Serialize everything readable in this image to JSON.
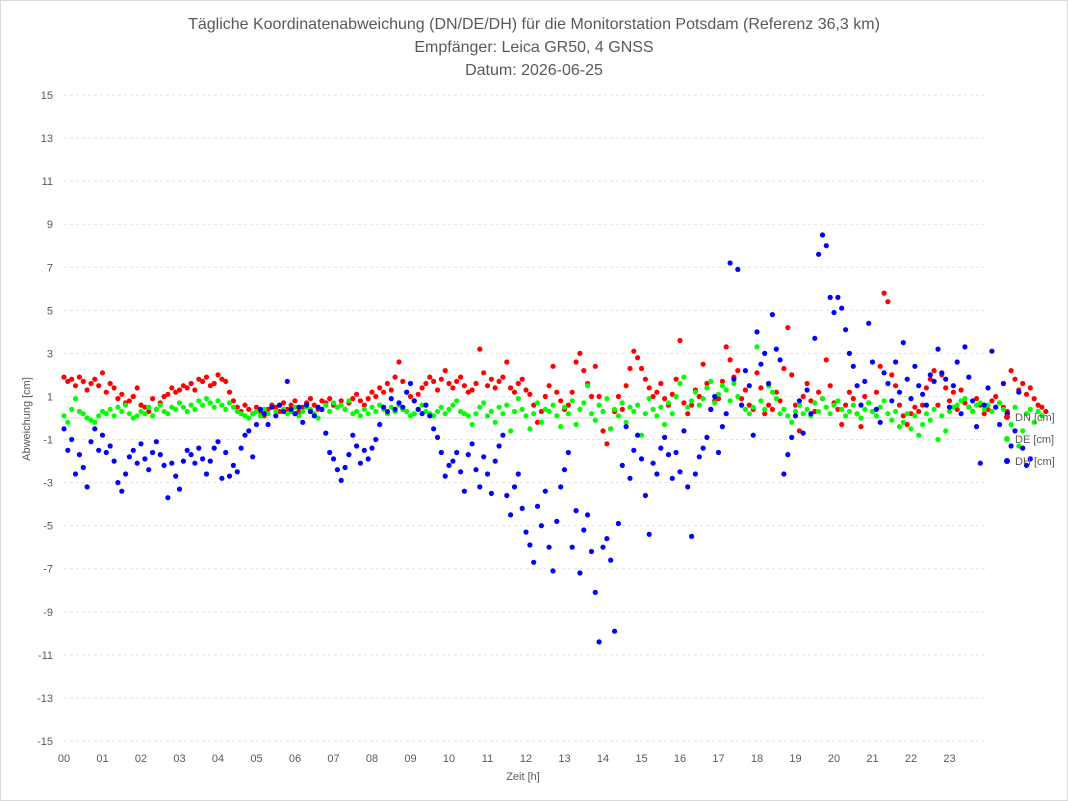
{
  "chart_data": {
    "type": "scatter",
    "title": [
      "Tägliche Koordinatenabweichung (DN/DE/DH) für die Monitorstation Potsdam (Referenz 36,3 km)",
      "Empfänger: Leica GR50, 4 GNSS",
      "Datum: 2026-06-25"
    ],
    "xlabel": "Zeit [h]",
    "ylabel": "Abweichung [cm]",
    "xlim": [
      0,
      23.8
    ],
    "ylim": [
      -15,
      15
    ],
    "x_ticks": [
      "00",
      "01",
      "02",
      "03",
      "04",
      "05",
      "06",
      "07",
      "08",
      "09",
      "10",
      "11",
      "12",
      "13",
      "14",
      "15",
      "16",
      "17",
      "18",
      "19",
      "20",
      "21",
      "22",
      "23"
    ],
    "y_ticks": [
      15,
      13,
      11,
      9,
      7,
      5,
      3,
      1,
      -1,
      -3,
      -5,
      -7,
      -9,
      -11,
      -13,
      -15
    ],
    "grid": "horizontal",
    "legend_position": "right",
    "sampling_step_h": 0.1,
    "series": [
      {
        "name": "DN [cm]",
        "color": "#ff0000",
        "values": [
          1.9,
          1.7,
          1.8,
          1.5,
          1.9,
          1.7,
          1.3,
          1.6,
          1.8,
          1.5,
          2.1,
          1.2,
          1.6,
          1.4,
          0.9,
          1.1,
          0.7,
          0.8,
          1.0,
          1.4,
          0.6,
          0.5,
          0.3,
          0.9,
          0.4,
          0.7,
          1.0,
          1.1,
          1.4,
          1.2,
          1.3,
          1.5,
          1.4,
          1.6,
          1.3,
          1.8,
          1.7,
          1.9,
          1.5,
          1.6,
          2.0,
          1.8,
          1.7,
          1.2,
          0.8,
          0.5,
          0.3,
          0.6,
          0.4,
          0.2,
          0.5,
          0.3,
          0.1,
          0.4,
          0.6,
          0.5,
          0.3,
          0.7,
          0.4,
          0.6,
          0.8,
          0.3,
          0.5,
          0.7,
          0.9,
          0.6,
          0.4,
          0.8,
          0.7,
          0.9,
          0.6,
          0.5,
          0.8,
          0.4,
          0.7,
          0.9,
          1.1,
          0.8,
          0.6,
          0.9,
          1.2,
          1.0,
          1.4,
          1.2,
          1.6,
          1.3,
          1.9,
          2.6,
          1.7,
          1.2,
          1.0,
          0.8,
          1.1,
          1.4,
          1.6,
          1.9,
          1.7,
          1.3,
          1.8,
          2.2,
          1.6,
          1.4,
          1.7,
          1.9,
          1.5,
          1.2,
          1.3,
          1.6,
          3.2,
          2.1,
          1.5,
          1.8,
          1.4,
          1.7,
          1.9,
          2.6,
          1.4,
          1.2,
          1.6,
          1.8,
          1.3,
          1.1,
          0.6,
          -0.2,
          0.3,
          1.0,
          1.5,
          2.4,
          1.2,
          0.8,
          0.4,
          0.6,
          1.2,
          2.6,
          3.0,
          2.2,
          1.6,
          1.0,
          2.4,
          1.0,
          -0.6,
          -1.2,
          -0.5,
          0.3,
          1.0,
          0.4,
          1.5,
          2.3,
          3.1,
          2.8,
          2.3,
          1.8,
          1.4,
          1.0,
          1.2,
          1.6,
          0.9,
          0.6,
          1.1,
          1.8,
          3.6,
          0.7,
          0.2,
          0.6,
          1.3,
          1.0,
          2.5,
          1.6,
          0.4,
          0.8,
          0.9,
          1.7,
          3.3,
          2.7,
          1.9,
          2.2,
          0.9,
          1.3,
          0.6,
          0.4,
          2.1,
          1.4,
          0.2,
          0.6,
          0.4,
          1.2,
          0.8,
          2.3,
          4.2,
          2.0,
          0.6,
          -0.6,
          1.0,
          1.6,
          0.8,
          0.3,
          1.2,
          0.9,
          2.7,
          1.5,
          0.7,
          0.4,
          -0.3,
          0.6,
          1.2,
          0.9,
          0.2,
          -0.4,
          1.0,
          0.7,
          0.3,
          1.2,
          2.4,
          5.8,
          5.4,
          2.0,
          1.5,
          0.6,
          0.1,
          -0.3,
          0.2,
          0.5,
          0.3,
          0.6,
          1.4,
          1.8,
          2.2,
          0.6,
          2.0,
          1.4,
          0.8,
          1.2,
          0.4,
          1.3,
          0.7,
          0.5,
          0.3,
          0.9,
          0.6,
          0.2,
          0.4,
          0.8,
          1.0,
          0.7,
          0.5,
          0.3,
          2.2,
          1.8,
          1.3,
          1.6,
          1.1,
          1.4,
          0.9,
          0.6,
          0.5,
          0.3
        ]
      },
      {
        "name": "DE [cm]",
        "color": "#00ff00",
        "values": [
          0.1,
          -0.2,
          0.4,
          0.9,
          0.3,
          0.2,
          0.0,
          -0.1,
          -0.2,
          0.1,
          0.3,
          0.2,
          0.4,
          0.1,
          0.5,
          0.3,
          0.6,
          0.2,
          0.0,
          0.1,
          0.3,
          0.2,
          0.5,
          0.1,
          0.4,
          0.6,
          0.3,
          0.2,
          0.5,
          0.4,
          0.7,
          0.5,
          0.3,
          0.6,
          0.4,
          0.8,
          0.6,
          0.9,
          0.7,
          0.5,
          0.8,
          0.6,
          0.4,
          0.7,
          0.5,
          0.3,
          0.2,
          0.1,
          0.0,
          0.2,
          0.3,
          0.1,
          0.4,
          0.2,
          0.5,
          0.3,
          0.6,
          0.4,
          0.2,
          0.3,
          0.5,
          0.1,
          0.3,
          0.5,
          0.4,
          0.2,
          0.0,
          0.4,
          0.6,
          0.3,
          0.7,
          0.5,
          0.6,
          0.4,
          0.8,
          0.2,
          0.3,
          0.1,
          0.4,
          0.2,
          0.5,
          0.3,
          0.6,
          0.4,
          0.2,
          0.5,
          0.3,
          0.6,
          0.4,
          0.3,
          0.1,
          0.2,
          0.4,
          0.6,
          0.3,
          0.2,
          0.1,
          0.3,
          0.5,
          0.2,
          0.4,
          0.6,
          0.8,
          0.3,
          0.2,
          0.1,
          -0.3,
          0.2,
          0.5,
          0.7,
          0.1,
          0.3,
          -0.2,
          0.5,
          0.2,
          0.6,
          -0.6,
          0.3,
          0.9,
          0.4,
          0.1,
          -0.5,
          0.2,
          0.7,
          -0.2,
          0.4,
          0.3,
          0.6,
          0.1,
          -0.4,
          0.5,
          0.2,
          0.8,
          -0.3,
          0.4,
          0.7,
          1.5,
          0.2,
          -0.1,
          0.6,
          0.3,
          0.9,
          -0.5,
          0.4,
          0.1,
          0.7,
          -0.2,
          0.5,
          0.3,
          0.6,
          -0.8,
          0.2,
          0.9,
          0.4,
          0.1,
          0.5,
          -0.3,
          0.7,
          0.2,
          1.0,
          1.6,
          1.9,
          0.5,
          0.8,
          1.2,
          0.6,
          0.9,
          1.4,
          1.7,
          0.7,
          1.1,
          1.5,
          1.3,
          0.8,
          1.6,
          1.0,
          0.6,
          0.4,
          0.2,
          0.5,
          3.3,
          0.8,
          0.4,
          1.5,
          1.2,
          0.9,
          0.2,
          0.4,
          0.1,
          -0.2,
          0.3,
          0.6,
          0.2,
          0.4,
          0.1,
          0.7,
          0.3,
          0.9,
          0.5,
          0.2,
          0.6,
          0.8,
          0.4,
          0.1,
          0.3,
          0.6,
          0.2,
          0.0,
          0.4,
          0.7,
          0.3,
          0.1,
          0.5,
          0.8,
          0.2,
          -0.1,
          0.3,
          -0.4,
          -0.2,
          0.2,
          -0.5,
          0.1,
          -0.8,
          -0.3,
          0.2,
          -0.1,
          0.4,
          -1.0,
          0.1,
          -0.6,
          0.3,
          0.5,
          0.6,
          0.8,
          0.9,
          0.5,
          0.3,
          0.6,
          0.7,
          0.4,
          0.6,
          0.3,
          0.5,
          0.7,
          0.4,
          0.2,
          -0.3,
          0.5,
          -1.3,
          -0.6,
          0.2,
          0.4,
          -0.2,
          0.3,
          0.1
        ]
      },
      {
        "name": "DH [cm]",
        "color": "#0000ff",
        "values": [
          -0.5,
          -1.5,
          -1.0,
          -2.6,
          -1.7,
          -2.3,
          -3.2,
          -1.1,
          -0.5,
          -1.5,
          -0.8,
          -1.6,
          -1.3,
          -2.0,
          -3.0,
          -3.4,
          -2.6,
          -1.8,
          -1.5,
          -2.1,
          -1.2,
          -1.9,
          -2.4,
          -1.6,
          -1.1,
          -1.7,
          -2.2,
          -3.7,
          -2.1,
          -2.7,
          -3.3,
          -2.0,
          -1.5,
          -1.7,
          -2.1,
          -1.4,
          -1.9,
          -2.6,
          -2.0,
          -1.4,
          -1.1,
          -2.8,
          -1.6,
          -2.7,
          -2.2,
          -2.5,
          -1.4,
          -0.8,
          -0.6,
          -1.8,
          -0.3,
          0.4,
          0.2,
          -0.3,
          0.5,
          0.1,
          0.6,
          0.3,
          1.7,
          0.4,
          0.2,
          0.5,
          -0.2,
          0.6,
          0.3,
          0.1,
          0.5,
          0.4,
          -0.7,
          -1.6,
          -1.9,
          -2.4,
          -2.9,
          -2.3,
          -1.7,
          -0.8,
          -1.3,
          -2.1,
          -1.5,
          -1.9,
          -1.4,
          -1.0,
          -0.3,
          0.5,
          0.3,
          0.9,
          0.4,
          0.7,
          0.5,
          1.2,
          1.6,
          0.8,
          0.4,
          0.2,
          0.6,
          0.1,
          -0.5,
          -0.9,
          -1.6,
          -2.7,
          -2.2,
          -2.0,
          -1.6,
          -2.5,
          -3.4,
          -1.7,
          -1.2,
          -2.4,
          -3.2,
          -1.8,
          -2.6,
          -3.5,
          -2.0,
          -1.3,
          -0.8,
          -3.6,
          -4.5,
          -3.2,
          -2.6,
          -4.2,
          -5.3,
          -5.9,
          -6.7,
          -4.1,
          -5.0,
          -3.4,
          -6.0,
          -7.1,
          -4.8,
          -3.2,
          -2.4,
          -1.6,
          -6.0,
          -4.3,
          -7.2,
          -5.2,
          -4.5,
          -6.2,
          -8.1,
          -10.4,
          -6.0,
          -5.6,
          -6.6,
          -9.9,
          -4.9,
          -2.2,
          -0.4,
          -2.8,
          -1.5,
          -0.8,
          -1.9,
          -3.6,
          -5.4,
          -2.1,
          -2.6,
          -1.4,
          -0.9,
          -1.7,
          -2.8,
          -1.6,
          -2.5,
          -0.6,
          -3.2,
          -5.5,
          -2.6,
          -1.8,
          -1.4,
          -0.9,
          0.4,
          1.0,
          -1.6,
          -0.4,
          0.2,
          7.2,
          1.8,
          6.9,
          0.6,
          2.2,
          1.5,
          -0.8,
          4.0,
          2.5,
          3.0,
          1.6,
          4.8,
          3.2,
          2.7,
          -2.6,
          -1.7,
          -0.9,
          0.1,
          0.8,
          -0.7,
          1.3,
          0.2,
          3.7,
          7.6,
          8.5,
          8.0,
          5.6,
          4.9,
          5.6,
          5.1,
          4.1,
          3.0,
          2.4,
          1.5,
          0.6,
          1.7,
          4.4,
          2.6,
          0.4,
          -0.2,
          2.1,
          1.6,
          0.8,
          2.6,
          1.2,
          3.5,
          1.8,
          0.9,
          2.4,
          1.5,
          1.1,
          0.6,
          2.0,
          1.7,
          3.2,
          2.1,
          1.8,
          0.5,
          1.5,
          2.6,
          0.2,
          3.3,
          1.9,
          0.8,
          -0.4,
          -2.1,
          0.6,
          1.4,
          3.1,
          0.5,
          -0.3,
          1.6,
          0.2,
          -1.3,
          -0.6,
          1.2,
          -1.4,
          -2.2,
          -1.9
        ]
      }
    ]
  }
}
